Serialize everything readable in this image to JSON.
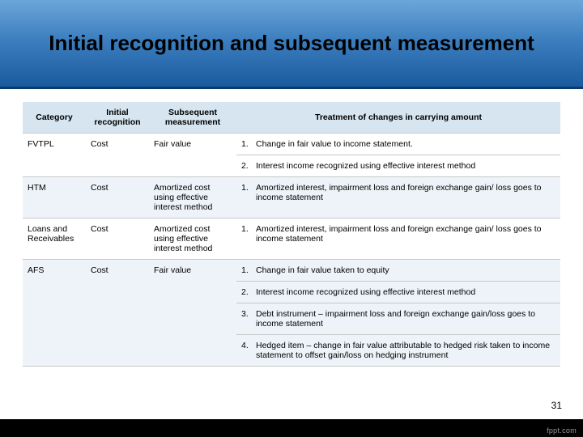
{
  "title": "Initial recognition and subsequent measurement",
  "page_number": "31",
  "footer_brand": "fppt.com",
  "colors": {
    "band_gradient_top": "#6ca6d9",
    "band_gradient_mid": "#3d7fbf",
    "band_gradient_bottom": "#1a5a9e",
    "band_border": "#0d3a6b",
    "header_bg": "#d6e5f0",
    "row_alt_bg": "#edf3f8",
    "border": "#c8c8c8",
    "footer_bg": "#000000"
  },
  "table": {
    "headers": {
      "category": "Category",
      "initial": "Initial recognition",
      "subsequent": "Subsequent measurement",
      "treatment": "Treatment of changes in carrying amount"
    },
    "rows": [
      {
        "category": "FVTPL",
        "initial": "Cost",
        "subsequent": "Fair value",
        "treatment": [
          "Change in fair value to income statement.",
          "Interest income recognized using effective interest method"
        ]
      },
      {
        "category": "HTM",
        "initial": "Cost",
        "subsequent": "Amortized cost using effective interest method",
        "treatment": [
          "Amortized interest, impairment loss and foreign exchange gain/ loss goes to income statement"
        ]
      },
      {
        "category": "Loans and Receivables",
        "initial": "Cost",
        "subsequent": "Amortized cost using effective interest method",
        "treatment": [
          "Amortized interest, impairment loss and foreign exchange gain/ loss goes to income statement"
        ]
      },
      {
        "category": "AFS",
        "initial": "Cost",
        "subsequent": "Fair value",
        "treatment": [
          "Change in fair value taken to equity",
          "Interest income recognized using effective interest method",
          "Debt instrument – impairment loss and foreign exchange gain/loss goes to income statement",
          "Hedged item – change in fair value attributable to hedged risk taken to income statement to offset gain/loss on hedging instrument"
        ]
      }
    ]
  }
}
